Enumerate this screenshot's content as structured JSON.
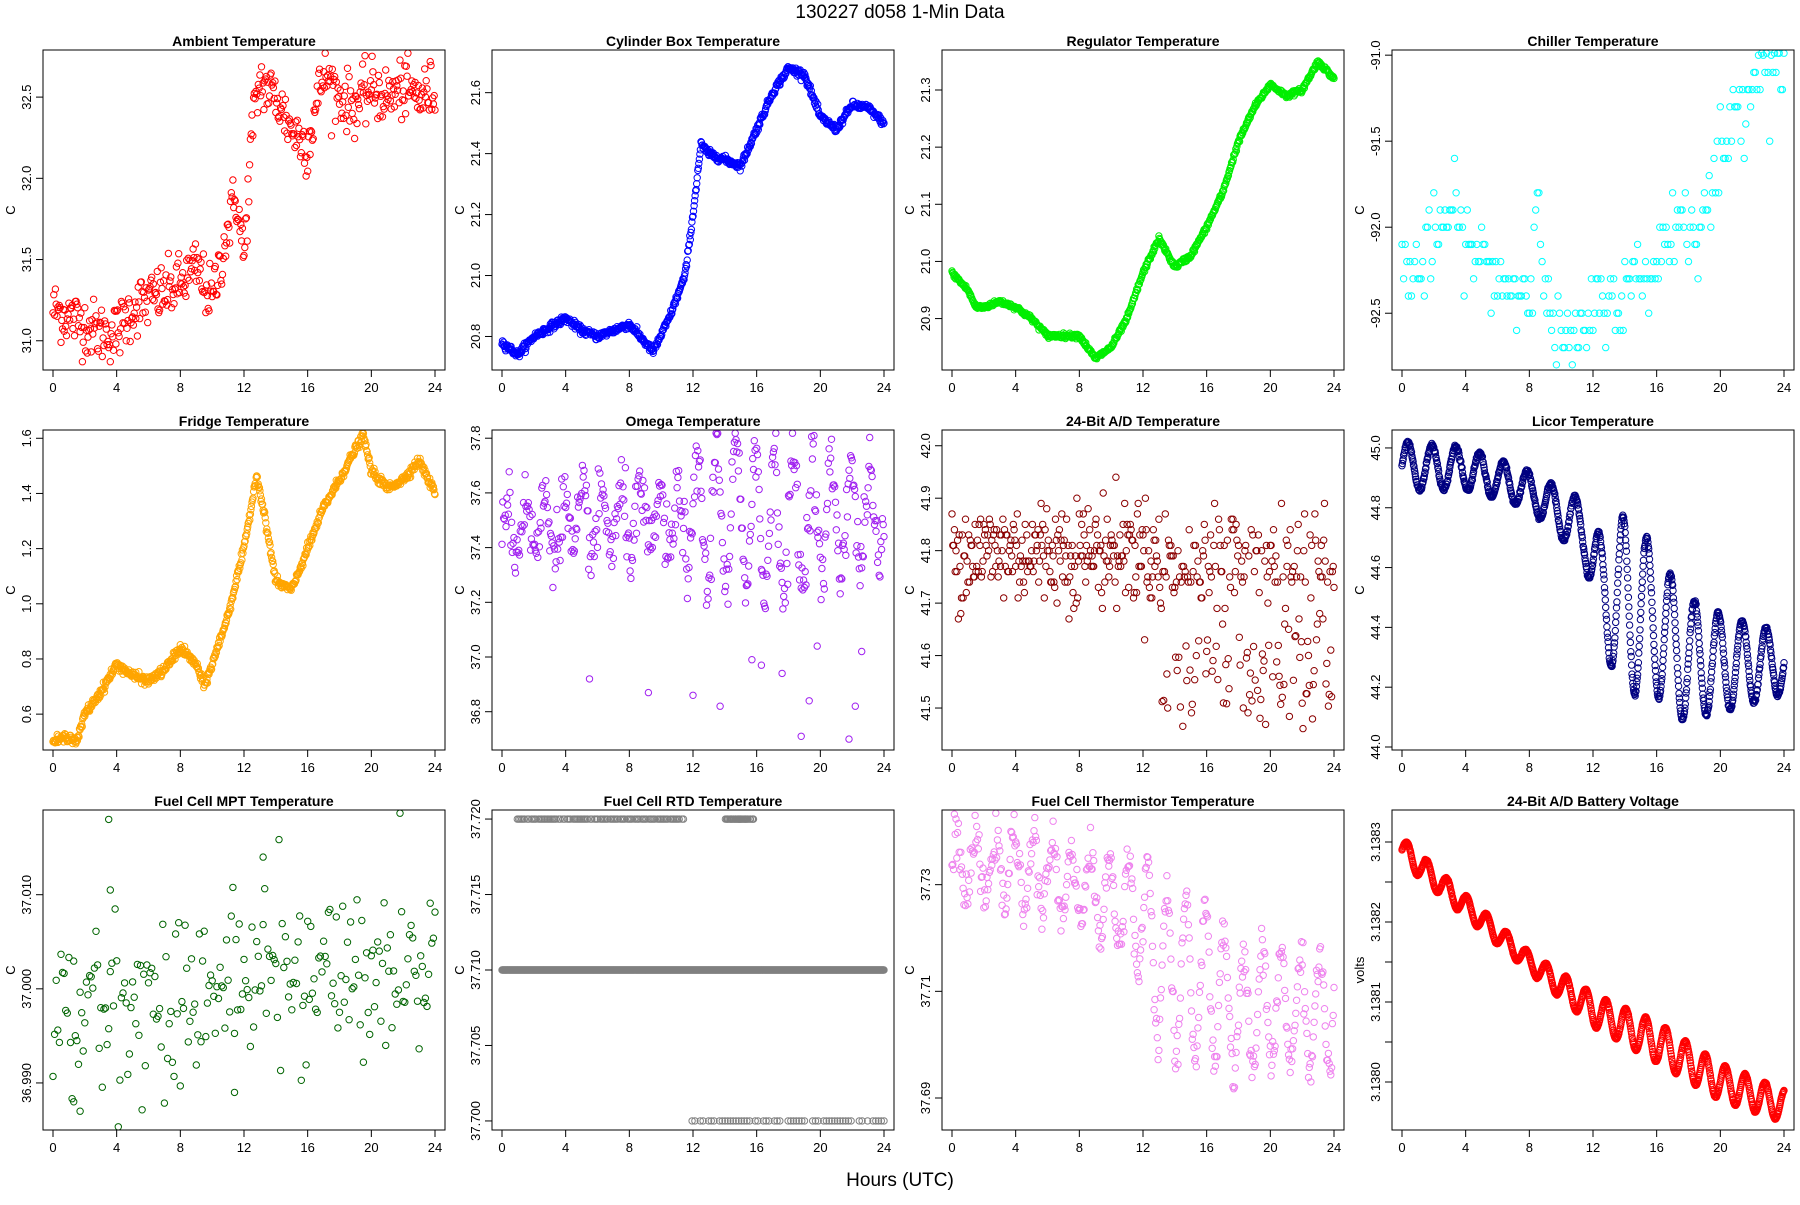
{
  "figure": {
    "title": "130227   d058   1-Min Data",
    "xlabel": "Hours (UTC)"
  },
  "chart_data": [
    {
      "type": "scatter",
      "title": "Ambient Temperature",
      "ylabel": "C",
      "color": "#ff0000",
      "xlim": [
        0,
        24
      ],
      "xticks": [
        0,
        4,
        8,
        12,
        16,
        20,
        24
      ],
      "ylim": [
        30.82,
        32.79
      ],
      "yticks": [
        31.0,
        31.5,
        32.0,
        32.5
      ],
      "ytick_labels": [
        "31.0",
        "31.5",
        "32.0",
        "32.5"
      ],
      "x": [
        0,
        1,
        2,
        3,
        4,
        5,
        6,
        7,
        8,
        9,
        10,
        11,
        11.5,
        12,
        12.5,
        13,
        14,
        15,
        16,
        17,
        18,
        19,
        20,
        21,
        22,
        23,
        24
      ],
      "y": [
        31.2,
        31.15,
        31.1,
        31.05,
        31.05,
        31.2,
        31.25,
        31.3,
        31.35,
        31.45,
        31.25,
        31.7,
        31.9,
        31.5,
        32.3,
        32.6,
        32.5,
        32.3,
        32.2,
        32.65,
        32.5,
        32.45,
        32.55,
        32.5,
        32.55,
        32.5,
        32.55
      ],
      "noise": 0.09,
      "density": 2
    },
    {
      "type": "scatter",
      "title": "Cylinder Box Temperature",
      "ylabel": "C",
      "color": "#0000ff",
      "xlim": [
        0,
        24
      ],
      "xticks": [
        0,
        4,
        8,
        12,
        16,
        20,
        24
      ],
      "ylim": [
        20.69,
        21.74
      ],
      "yticks": [
        20.8,
        21.0,
        21.2,
        21.4,
        21.6
      ],
      "ytick_labels": [
        "20.8",
        "21.0",
        "21.2",
        "21.4",
        "21.6"
      ],
      "x": [
        0,
        1,
        2,
        4,
        5,
        6,
        8,
        9.5,
        10.5,
        11.5,
        12,
        12.5,
        13,
        14,
        15,
        16,
        17,
        18,
        19,
        20,
        21,
        22,
        23,
        24
      ],
      "y": [
        20.78,
        20.74,
        20.8,
        20.86,
        20.82,
        20.8,
        20.84,
        20.75,
        20.86,
        21.0,
        21.2,
        21.43,
        21.4,
        21.38,
        21.36,
        21.48,
        21.6,
        21.68,
        21.66,
        21.52,
        21.48,
        21.56,
        21.55,
        21.5
      ],
      "noise": 0.006,
      "density": 3
    },
    {
      "type": "scatter",
      "title": "Regulator Temperature",
      "ylabel": "C",
      "color": "#00ee00",
      "xlim": [
        0,
        24
      ],
      "xticks": [
        0,
        4,
        8,
        12,
        16,
        20,
        24
      ],
      "ylim": [
        20.81,
        21.37
      ],
      "yticks": [
        20.9,
        21.0,
        21.1,
        21.2,
        21.3
      ],
      "ytick_labels": [
        "20.9",
        "21.0",
        "21.1",
        "21.2",
        "21.3"
      ],
      "x": [
        0,
        1,
        1.5,
        2,
        3,
        4,
        5,
        6,
        7,
        8,
        9,
        10,
        11,
        12,
        13,
        14,
        15,
        16,
        17,
        18,
        19,
        20,
        21,
        22,
        23,
        24
      ],
      "y": [
        20.98,
        20.95,
        20.92,
        20.92,
        20.93,
        20.92,
        20.9,
        20.87,
        20.87,
        20.87,
        20.83,
        20.85,
        20.9,
        20.98,
        21.04,
        20.99,
        21.01,
        21.06,
        21.12,
        21.21,
        21.27,
        21.31,
        21.29,
        21.3,
        21.35,
        21.32
      ],
      "noise": 0.002,
      "density": 3
    },
    {
      "type": "scatter",
      "title": "Chiller Temperature",
      "ylabel": "C",
      "color": "#00ffff",
      "xlim": [
        0,
        24
      ],
      "xticks": [
        0,
        4,
        8,
        12,
        16,
        20,
        24
      ],
      "ylim": [
        -92.83,
        -90.97
      ],
      "yticks": [
        -92.5,
        -92.0,
        -91.5,
        -91.0
      ],
      "ytick_labels": [
        "-92.5",
        "-92.0",
        "-91.5",
        "-91.0"
      ],
      "x": [
        0,
        1,
        2,
        3,
        4,
        5,
        6,
        7,
        8,
        8.5,
        9,
        10,
        11,
        12,
        13,
        14,
        15,
        16,
        17,
        18,
        19,
        20,
        21,
        22,
        23,
        24
      ],
      "y": [
        -92.2,
        -92.3,
        -92.1,
        -91.9,
        -92.1,
        -92.2,
        -92.3,
        -92.35,
        -92.4,
        -91.6,
        -92.5,
        -92.65,
        -92.7,
        -92.5,
        -92.4,
        -92.4,
        -92.3,
        -92.2,
        -91.95,
        -92.0,
        -91.9,
        -91.6,
        -91.35,
        -91.1,
        -91.0,
        -91.0
      ],
      "noise": 0.12,
      "density": 1,
      "quantize": 0.1
    },
    {
      "type": "scatter",
      "title": "Fridge Temperature",
      "ylabel": "C",
      "color": "#ffa500",
      "xlim": [
        0,
        24
      ],
      "xticks": [
        0,
        4,
        8,
        12,
        16,
        20,
        24
      ],
      "ylim": [
        0.47,
        1.63
      ],
      "yticks": [
        0.6,
        0.8,
        1.0,
        1.2,
        1.4,
        1.6
      ],
      "ytick_labels": [
        "0.6",
        "0.8",
        "1.0",
        "1.2",
        "1.4",
        "1.6"
      ],
      "x": [
        0,
        1,
        1.5,
        2,
        3,
        4,
        5,
        6,
        7,
        8,
        9,
        9.5,
        10,
        11,
        12,
        12.8,
        13.5,
        14,
        15,
        16,
        17,
        18,
        19,
        19.5,
        20,
        21,
        22,
        23,
        24
      ],
      "y": [
        0.5,
        0.52,
        0.5,
        0.6,
        0.68,
        0.78,
        0.74,
        0.72,
        0.76,
        0.84,
        0.78,
        0.7,
        0.78,
        0.96,
        1.2,
        1.47,
        1.25,
        1.08,
        1.05,
        1.2,
        1.35,
        1.45,
        1.56,
        1.61,
        1.48,
        1.42,
        1.45,
        1.52,
        1.4
      ],
      "noise": 0.008,
      "density": 3
    },
    {
      "type": "scatter",
      "title": "Omega Temperature",
      "ylabel": "C",
      "color": "#a020f0",
      "xlim": [
        0,
        24
      ],
      "xticks": [
        0,
        4,
        8,
        12,
        16,
        20,
        24
      ],
      "ylim": [
        36.66,
        37.83
      ],
      "yticks": [
        36.8,
        37.0,
        37.2,
        37.4,
        37.6,
        37.8
      ],
      "ytick_labels": [
        "36.8",
        "37.0",
        "37.2",
        "37.4",
        "37.6",
        "37.8"
      ],
      "x": [
        0,
        4,
        8,
        11,
        12,
        14,
        16,
        18,
        20,
        22,
        24
      ],
      "y": [
        37.48,
        37.48,
        37.5,
        37.48,
        37.5,
        37.52,
        37.5,
        37.48,
        37.5,
        37.52,
        37.5
      ],
      "noise": 0.06,
      "density": 2,
      "wave": {
        "amp": [
          0.1,
          0.1,
          0.12,
          0.28,
          0.28,
          0.15
        ],
        "amp_x": [
          0,
          8,
          11,
          13,
          17,
          24
        ],
        "period": 1.2
      },
      "outliers": [
        [
          5.5,
          36.92
        ],
        [
          9.2,
          36.87
        ],
        [
          12,
          36.86
        ],
        [
          13.7,
          36.82
        ],
        [
          15.7,
          36.99
        ],
        [
          16.3,
          36.97
        ],
        [
          17.6,
          36.94
        ],
        [
          18.8,
          36.71
        ],
        [
          19.3,
          36.84
        ],
        [
          19.8,
          37.04
        ],
        [
          21.8,
          36.7
        ],
        [
          22.2,
          36.82
        ],
        [
          22.6,
          37.02
        ]
      ]
    },
    {
      "type": "scatter",
      "title": "24-Bit A/D Temperature",
      "ylabel": "C",
      "color": "#8b0000",
      "xlim": [
        0,
        24
      ],
      "xticks": [
        0,
        4,
        8,
        12,
        16,
        20,
        24
      ],
      "ylim": [
        41.42,
        42.03
      ],
      "yticks": [
        41.5,
        41.6,
        41.7,
        41.8,
        41.9,
        42.0
      ],
      "ytick_labels": [
        "41.5",
        "41.6",
        "41.7",
        "41.8",
        "41.9",
        "42.0"
      ],
      "x": [
        0,
        4,
        8,
        12,
        13,
        24
      ],
      "y": [
        41.8,
        41.8,
        41.8,
        41.8,
        41.78,
        41.78
      ],
      "noise": 0.05,
      "density": 2,
      "quantize": 0.01,
      "lower_band": {
        "from": 13,
        "to": 24,
        "center": 41.55,
        "spread": 0.09
      }
    },
    {
      "type": "scatter",
      "title": "Licor Temperature",
      "ylabel": "C",
      "color": "#000080",
      "xlim": [
        0,
        24
      ],
      "xticks": [
        0,
        4,
        8,
        12,
        16,
        20,
        24
      ],
      "ylim": [
        43.99,
        45.06
      ],
      "yticks": [
        44.0,
        44.2,
        44.4,
        44.6,
        44.8,
        45.0
      ],
      "ytick_labels": [
        "44.0",
        "44.2",
        "44.4",
        "44.6",
        "44.8",
        "45.0"
      ],
      "x": [
        0,
        4,
        8,
        10,
        11.5,
        12.5,
        16,
        17.5,
        20,
        24
      ],
      "y": [
        44.94,
        44.93,
        44.86,
        44.78,
        44.72,
        44.52,
        44.42,
        44.3,
        44.28,
        44.28
      ],
      "noise": 0.003,
      "density": 4,
      "wave": {
        "amp": [
          0.08,
          0.06,
          0.1,
          0.3,
          0.2,
          0.1
        ],
        "amp_x": [
          0,
          8,
          11.5,
          14,
          18,
          24
        ],
        "period": 1.5
      }
    },
    {
      "type": "scatter",
      "title": "Fuel Cell MPT Temperature",
      "ylabel": "C",
      "color": "#006400",
      "xlim": [
        0,
        24
      ],
      "xticks": [
        0,
        4,
        8,
        12,
        16,
        20,
        24
      ],
      "ylim": [
        36.985,
        37.019
      ],
      "yticks": [
        36.99,
        37.0,
        37.01
      ],
      "ytick_labels": [
        "36.990",
        "37.000",
        "37.010"
      ],
      "x": [
        0,
        4,
        8,
        12,
        16,
        20,
        24
      ],
      "y": [
        36.997,
        36.998,
        36.999,
        37.001,
        37.002,
        37.002,
        37.003
      ],
      "noise": 0.0045,
      "density": 1,
      "outliers": [
        [
          3.5,
          37.018
        ],
        [
          3.6,
          37.0105
        ],
        [
          13.2,
          37.014
        ],
        [
          1.3,
          36.988
        ],
        [
          1.7,
          36.987
        ],
        [
          11.4,
          36.989
        ]
      ]
    },
    {
      "type": "scatter",
      "title": "Fuel Cell RTD Temperature",
      "ylabel": "C",
      "color": "#808080",
      "xlim": [
        0,
        24
      ],
      "xticks": [
        0,
        4,
        8,
        12,
        16,
        20,
        24
      ],
      "ylim": [
        37.6994,
        37.7206
      ],
      "yticks": [
        37.7,
        37.705,
        37.71,
        37.715,
        37.72
      ],
      "ytick_labels": [
        "37.700",
        "37.705",
        "37.710",
        "37.715",
        "37.720"
      ],
      "x": [
        0,
        24
      ],
      "y": [
        37.71,
        37.71
      ],
      "noise": 0,
      "density": 3,
      "bands": [
        {
          "y": 37.72,
          "from": 0.6,
          "to": 11.4,
          "density": 1
        },
        {
          "y": 37.72,
          "from": 14,
          "to": 15.8,
          "density": 0.4
        },
        {
          "y": 37.7,
          "from": 11.6,
          "to": 24,
          "density": 0.6
        }
      ]
    },
    {
      "type": "scatter",
      "title": "Fuel Cell Thermistor Temperature",
      "ylabel": "C",
      "color": "#ee82ee",
      "xlim": [
        0,
        24
      ],
      "xticks": [
        0,
        4,
        8,
        12,
        16,
        20,
        24
      ],
      "ylim": [
        37.684,
        37.744
      ],
      "yticks": [
        37.69,
        37.71,
        37.73
      ],
      "ytick_labels": [
        "37.69",
        "37.71",
        "37.73"
      ],
      "x": [
        0,
        4,
        8,
        12,
        13,
        14,
        16,
        18,
        20,
        24
      ],
      "y": [
        37.733,
        37.733,
        37.73,
        37.724,
        37.715,
        37.712,
        37.712,
        37.705,
        37.707,
        37.706
      ],
      "noise": 0.002,
      "density": 2,
      "wave": {
        "amp": [
          0.006,
          0.007,
          0.012,
          0.017,
          0.012,
          0.01
        ],
        "amp_x": [
          0,
          8,
          12,
          14.5,
          18,
          24
        ],
        "period": 1.2
      }
    },
    {
      "type": "scatter",
      "title": "24-Bit A/D Battery Voltage",
      "ylabel": "volts",
      "color": "#ff0000",
      "xlim": [
        0,
        24
      ],
      "xticks": [
        0,
        4,
        8,
        12,
        16,
        20,
        24
      ],
      "ylim": [
        3.13794,
        3.13834
      ],
      "yticks": [
        3.138,
        3.13805,
        3.1381,
        3.13815,
        3.1382,
        3.13825,
        3.1383
      ],
      "ytick_labels": [
        "3.1380",
        "",
        "3.1381",
        "",
        "3.1382",
        "",
        "3.1383"
      ],
      "x": [
        0,
        4,
        8,
        12,
        16,
        20,
        24
      ],
      "y": [
        3.13829,
        3.13822,
        3.13815,
        3.13809,
        3.13805,
        3.138,
        3.13797
      ],
      "noise": 3e-07,
      "density": 4,
      "wave": {
        "amp": [
          1.5e-05,
          1.2e-05,
          2e-05,
          2.5e-05,
          2e-05
        ],
        "amp_x": [
          0,
          8,
          12,
          16,
          24
        ],
        "period": 1.25
      }
    }
  ]
}
